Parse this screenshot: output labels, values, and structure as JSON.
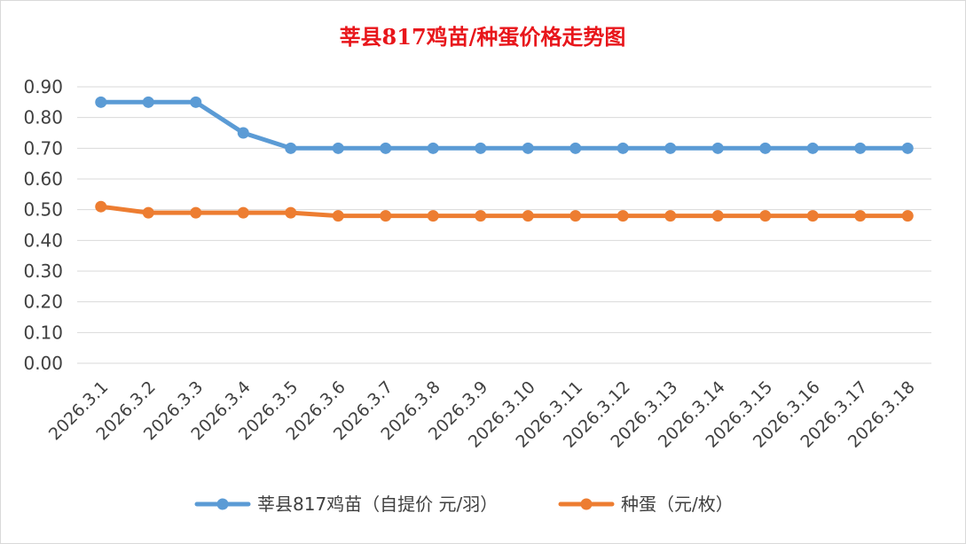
{
  "chart_data": {
    "type": "line",
    "title": "莘县817鸡苗/种蛋价格走势图",
    "categories": [
      "2026.3.1",
      "2026.3.2",
      "2026.3.3",
      "2026.3.4",
      "2026.3.5",
      "2026.3.6",
      "2026.3.7",
      "2026.3.8",
      "2026.3.9",
      "2026.3.10",
      "2026.3.11",
      "2026.3.12",
      "2026.3.13",
      "2026.3.14",
      "2026.3.15",
      "2026.3.16",
      "2026.3.17",
      "2026.3.18"
    ],
    "ylim": [
      0,
      0.9
    ],
    "yticks": [
      "0.00",
      "0.10",
      "0.20",
      "0.30",
      "0.40",
      "0.50",
      "0.60",
      "0.70",
      "0.80",
      "0.90"
    ],
    "grid": true,
    "legend_position": "bottom",
    "series": [
      {
        "name": "莘县817鸡苗（自提价 元/羽）",
        "color": "#5b9bd5",
        "values": [
          0.85,
          0.85,
          0.85,
          0.75,
          0.7,
          0.7,
          0.7,
          0.7,
          0.7,
          0.7,
          0.7,
          0.7,
          0.7,
          0.7,
          0.7,
          0.7,
          0.7,
          0.7
        ]
      },
      {
        "name": "种蛋（元/枚）",
        "color": "#ed7d31",
        "values": [
          0.51,
          0.49,
          0.49,
          0.49,
          0.49,
          0.48,
          0.48,
          0.48,
          0.48,
          0.48,
          0.48,
          0.48,
          0.48,
          0.48,
          0.48,
          0.48,
          0.48,
          0.48
        ]
      }
    ]
  }
}
